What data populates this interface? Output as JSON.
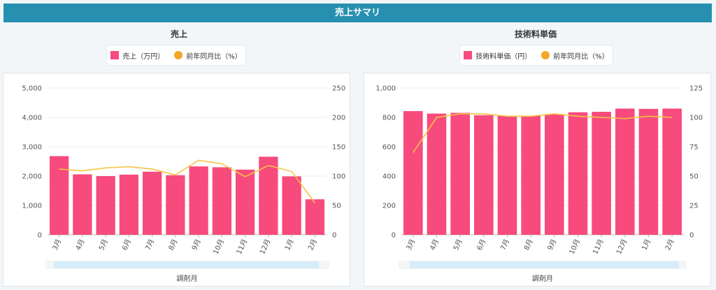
{
  "header": {
    "title": "売上サマリ"
  },
  "colors": {
    "header": "#2790b0",
    "bar": "#f74a7d",
    "line": "#f5c542",
    "dot": "#f5a623",
    "scroll": "#d6ecfa"
  },
  "chart_data": [
    {
      "type": "bar",
      "title": "売上",
      "categories": [
        "3月",
        "4月",
        "5月",
        "6月",
        "7月",
        "8月",
        "9月",
        "10月",
        "11月",
        "12月",
        "1月",
        "2月"
      ],
      "series": [
        {
          "name": "売上（万円）",
          "kind": "bar",
          "axis": "left",
          "values": [
            2680,
            2060,
            2000,
            2050,
            2150,
            2030,
            2330,
            2300,
            2220,
            2660,
            1990,
            1210
          ]
        },
        {
          "name": "前年同月比（%）",
          "kind": "line",
          "axis": "right",
          "values": [
            112,
            109,
            114,
            116,
            112,
            102,
            127,
            121,
            99,
            118,
            108,
            54
          ]
        }
      ],
      "ylim_left": [
        0,
        5000
      ],
      "ylim_right": [
        0,
        250
      ],
      "yticks_left": [
        "0",
        "1,000",
        "2,000",
        "3,000",
        "4,000",
        "5,000"
      ],
      "yticks_right": [
        "0",
        "50",
        "100",
        "150",
        "200",
        "250"
      ],
      "xlabel": "調剤月",
      "legend": [
        "売上（万円）",
        "前年同月比（%）"
      ]
    },
    {
      "type": "bar",
      "title": "技術料単価",
      "categories": [
        "3月",
        "4月",
        "5月",
        "6月",
        "7月",
        "8月",
        "9月",
        "10月",
        "11月",
        "12月",
        "1月",
        "2月"
      ],
      "series": [
        {
          "name": "技術料単価（円）",
          "kind": "bar",
          "axis": "left",
          "values": [
            843,
            826,
            831,
            815,
            810,
            812,
            822,
            835,
            838,
            860,
            858,
            860
          ]
        },
        {
          "name": "前年同月比（%）",
          "kind": "line",
          "axis": "right",
          "values": [
            70,
            100,
            103,
            103,
            101,
            101,
            103,
            101,
            100,
            99,
            101,
            100
          ]
        }
      ],
      "ylim_left": [
        0,
        1000
      ],
      "ylim_right": [
        0,
        125
      ],
      "yticks_left": [
        "0",
        "200",
        "400",
        "600",
        "800",
        "1,000"
      ],
      "yticks_right": [
        "0",
        "25",
        "50",
        "75",
        "100",
        "125"
      ],
      "xlabel": "調剤月",
      "legend": [
        "技術料単価（円）",
        "前年同月比（%）"
      ]
    }
  ]
}
